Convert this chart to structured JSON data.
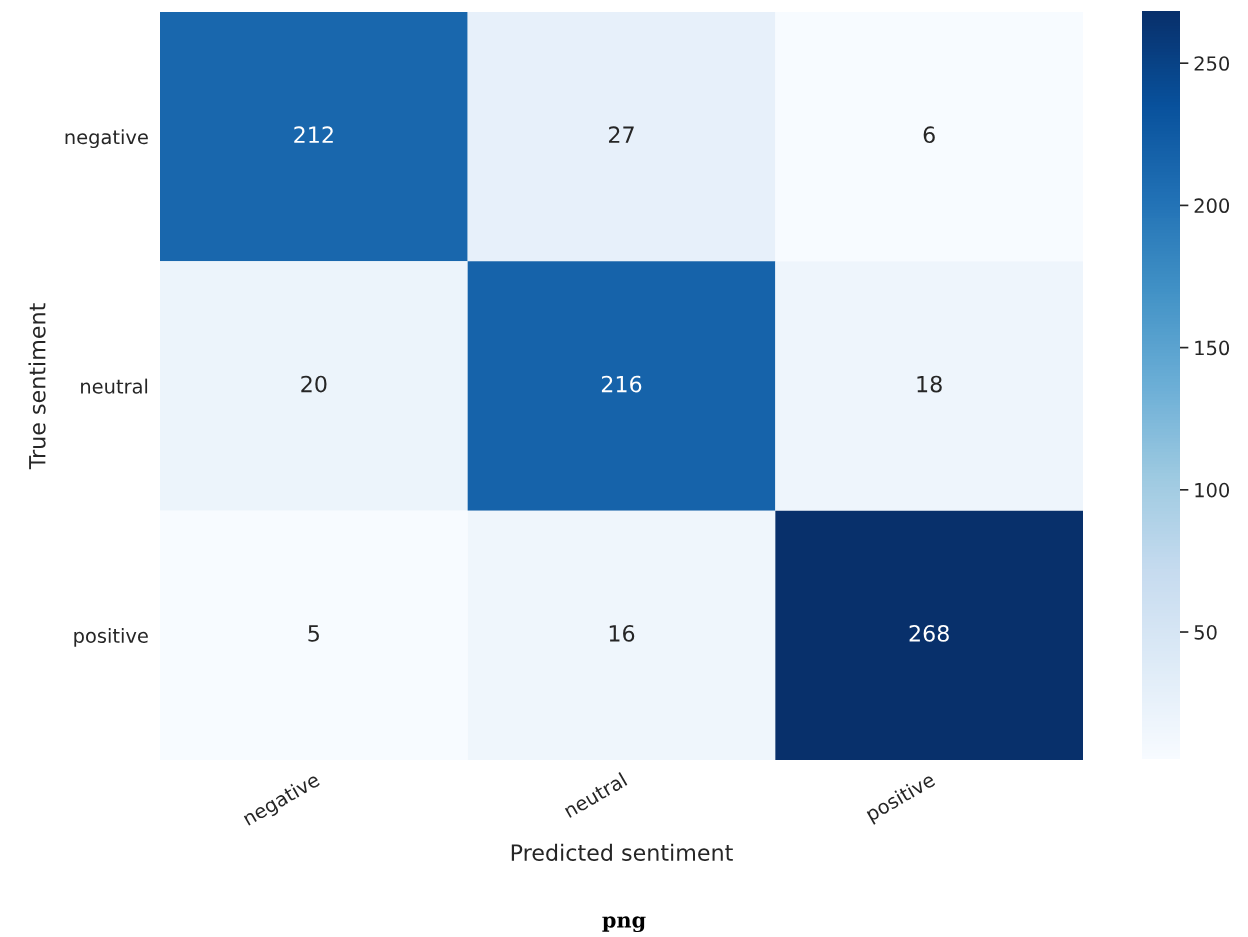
{
  "chart_data": {
    "type": "heatmap",
    "xlabel": "Predicted sentiment",
    "ylabel": "True sentiment",
    "categories": [
      "negative",
      "neutral",
      "positive"
    ],
    "y_categories": [
      "negative",
      "neutral",
      "positive"
    ],
    "cells": [
      [
        212,
        27,
        6
      ],
      [
        20,
        216,
        18
      ],
      [
        5,
        16,
        268
      ]
    ],
    "data_labels": true,
    "clim": [
      5,
      268
    ],
    "cticks": [
      50,
      100,
      150,
      200,
      250
    ],
    "annotations": [
      "png"
    ]
  }
}
